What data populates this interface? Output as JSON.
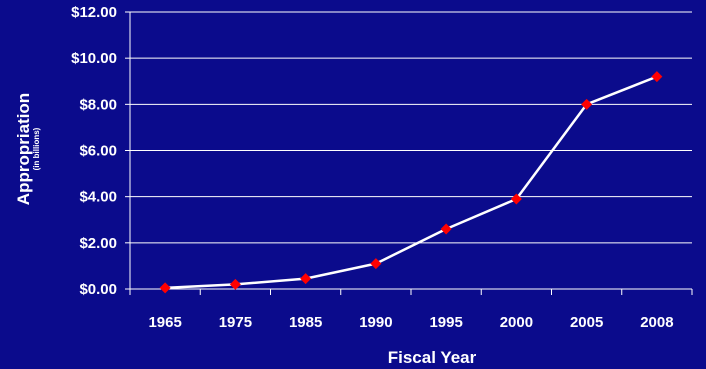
{
  "chart_data": {
    "type": "line",
    "title": "",
    "xlabel": "Fiscal Year",
    "ylabel": "Appropriation",
    "ylabel_sub": "(in billions)",
    "categories": [
      "1965",
      "1975",
      "1985",
      "1990",
      "1995",
      "2000",
      "2005",
      "2008"
    ],
    "y_tick_labels": [
      "$0.00",
      "$2.00",
      "$4.00",
      "$6.00",
      "$8.00",
      "$10.00",
      "$12.00"
    ],
    "ylim": [
      0,
      12
    ],
    "grid": true,
    "legend": "none",
    "series": [
      {
        "values": [
          0.05,
          0.2,
          0.45,
          1.1,
          2.6,
          3.9,
          8.0,
          9.2
        ]
      }
    ],
    "colors": {
      "background": "#0b0b8c",
      "line": "#ffffff",
      "marker": "#ff0000",
      "grid": "#ffffff"
    }
  }
}
